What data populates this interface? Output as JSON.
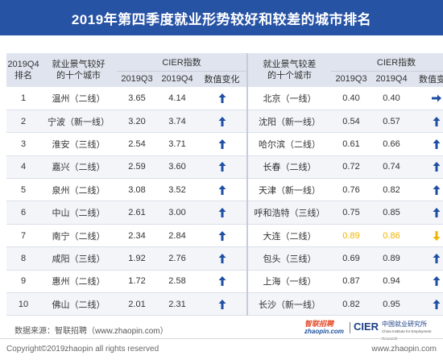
{
  "title": "2019年第四季度就业形势较好和较差的城市排名",
  "colors": {
    "header_bg": "#2753a5",
    "up_arrow": "#1f4fa3",
    "right_arrow": "#1f4fa3",
    "down_arrow": "#f0b400",
    "highlight_value": "#f0b400"
  },
  "table_headers": {
    "rank": "2019Q4\n排名",
    "best_cities": "就业景气较好\n的十个城市",
    "cier_index": "CIER指数",
    "q3": "2019Q3",
    "q4": "2019Q4",
    "change": "数值变化",
    "worst_cities": "就业景气较差\n的十个城市"
  },
  "chart_data": {
    "type": "table",
    "title": "2019年第四季度就业形势较好和较差的城市排名",
    "columns": [
      "2019Q4排名",
      "就业景气较好的十个城市",
      "2019Q3",
      "2019Q4",
      "数值变化",
      "就业景气较差的十个城市",
      "2019Q3",
      "2019Q4",
      "数值变化"
    ],
    "rows": [
      {
        "rank": "1",
        "best_city": "温州（二线）",
        "best_q3": "3.65",
        "best_q4": "4.14",
        "best_change": "up",
        "worst_city": "北京（一线）",
        "worst_q3": "0.40",
        "worst_q4": "0.40",
        "worst_change": "flat",
        "worst_highlight": false
      },
      {
        "rank": "2",
        "best_city": "宁波（新一线）",
        "best_q3": "3.20",
        "best_q4": "3.74",
        "best_change": "up",
        "worst_city": "沈阳（新一线）",
        "worst_q3": "0.54",
        "worst_q4": "0.57",
        "worst_change": "up",
        "worst_highlight": false
      },
      {
        "rank": "3",
        "best_city": "淮安（三线）",
        "best_q3": "2.54",
        "best_q4": "3.71",
        "best_change": "up",
        "worst_city": "哈尔滨（二线）",
        "worst_q3": "0.61",
        "worst_q4": "0.66",
        "worst_change": "up",
        "worst_highlight": false
      },
      {
        "rank": "4",
        "best_city": "嘉兴（二线）",
        "best_q3": "2.59",
        "best_q4": "3.60",
        "best_change": "up",
        "worst_city": "长春（二线）",
        "worst_q3": "0.72",
        "worst_q4": "0.74",
        "worst_change": "up",
        "worst_highlight": false
      },
      {
        "rank": "5",
        "best_city": "泉州（二线）",
        "best_q3": "3.08",
        "best_q4": "3.52",
        "best_change": "up",
        "worst_city": "天津（新一线）",
        "worst_q3": "0.76",
        "worst_q4": "0.82",
        "worst_change": "up",
        "worst_highlight": false
      },
      {
        "rank": "6",
        "best_city": "中山（二线）",
        "best_q3": "2.61",
        "best_q4": "3.00",
        "best_change": "up",
        "worst_city": "呼和浩特（三线）",
        "worst_q3": "0.75",
        "worst_q4": "0.85",
        "worst_change": "up",
        "worst_highlight": false
      },
      {
        "rank": "7",
        "best_city": "南宁（二线）",
        "best_q3": "2.34",
        "best_q4": "2.84",
        "best_change": "up",
        "worst_city": "大连（二线）",
        "worst_q3": "0.89",
        "worst_q4": "0.86",
        "worst_change": "down",
        "worst_highlight": true
      },
      {
        "rank": "8",
        "best_city": "咸阳（三线）",
        "best_q3": "1.92",
        "best_q4": "2.76",
        "best_change": "up",
        "worst_city": "包头（三线）",
        "worst_q3": "0.69",
        "worst_q4": "0.89",
        "worst_change": "up",
        "worst_highlight": false
      },
      {
        "rank": "9",
        "best_city": "惠州（二线）",
        "best_q3": "1.72",
        "best_q4": "2.58",
        "best_change": "up",
        "worst_city": "上海（一线）",
        "worst_q3": "0.87",
        "worst_q4": "0.94",
        "worst_change": "up",
        "worst_highlight": false
      },
      {
        "rank": "10",
        "best_city": "佛山（二线）",
        "best_q3": "2.01",
        "best_q4": "2.31",
        "best_change": "up",
        "worst_city": "长沙（新一线）",
        "worst_q3": "0.82",
        "worst_q4": "0.95",
        "worst_change": "up",
        "worst_highlight": false
      }
    ]
  },
  "footer": {
    "source": "数据来源：智联招聘（www.zhaopin.com）",
    "logo_zhaopin_top": "智联招聘",
    "logo_zhaopin_bottom": "zhaopin.com",
    "logo_cier": "CIER",
    "logo_cier_cn": "中国就业研究所",
    "logo_cier_en": "China Institute for Employment Research",
    "copyright": "Copyright©2019zhaopin all rights reserved",
    "url": "www.zhaopin.com"
  }
}
